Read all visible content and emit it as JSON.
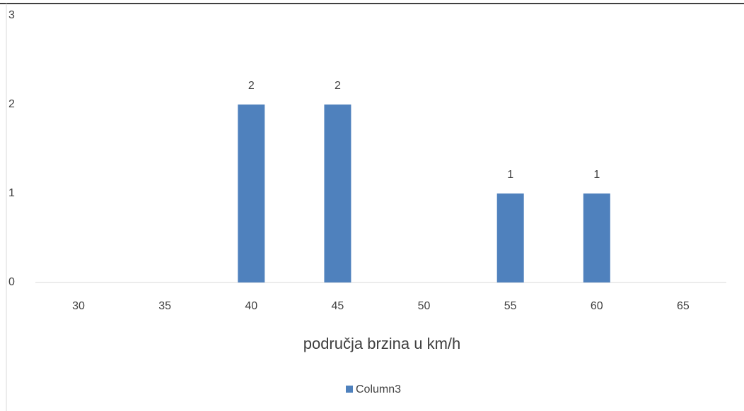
{
  "chart_data": {
    "type": "bar",
    "categories": [
      "30",
      "35",
      "40",
      "45",
      "50",
      "55",
      "60",
      "65"
    ],
    "series": [
      {
        "name": "Column3",
        "color": "#4f81bd",
        "values": [
          0,
          0,
          2,
          2,
          0,
          1,
          1,
          0
        ]
      }
    ],
    "xlabel": "područja brzina u km/h",
    "ylim": [
      0,
      3
    ],
    "yticks": [
      0,
      1,
      2,
      3
    ],
    "grid": false,
    "legend": "bottom"
  }
}
